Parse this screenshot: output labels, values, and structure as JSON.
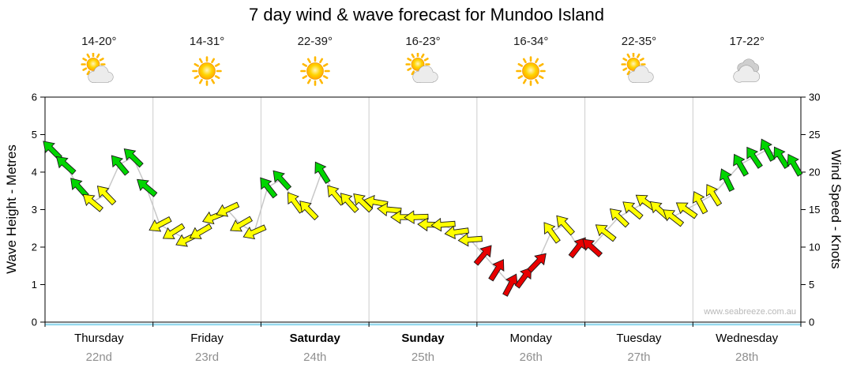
{
  "title": "7 day wind & wave forecast for Mundoo Island",
  "watermark": "www.seabreeze.com.au",
  "days": [
    {
      "name": "Thursday",
      "date": "22nd",
      "temps": "14-20°",
      "icon": "sun-cloud",
      "weekend": false
    },
    {
      "name": "Friday",
      "date": "23rd",
      "temps": "14-31°",
      "icon": "sun",
      "weekend": false
    },
    {
      "name": "Saturday",
      "date": "24th",
      "temps": "22-39°",
      "icon": "sun",
      "weekend": true
    },
    {
      "name": "Sunday",
      "date": "25th",
      "temps": "16-23°",
      "icon": "sun-cloud",
      "weekend": true
    },
    {
      "name": "Monday",
      "date": "26th",
      "temps": "16-34°",
      "icon": "sun",
      "weekend": false
    },
    {
      "name": "Tuesday",
      "date": "27th",
      "temps": "22-35°",
      "icon": "sun-cloud",
      "weekend": false
    },
    {
      "name": "Wednesday",
      "date": "28th",
      "temps": "17-22°",
      "icon": "cloud",
      "weekend": false
    }
  ],
  "chart_data": {
    "type": "line",
    "title": "7 day wind & wave forecast for Mundoo Island",
    "categories": [
      "Thursday 22nd",
      "Friday 23rd",
      "Saturday 24th",
      "Sunday 25th",
      "Monday 26th",
      "Tuesday 27th",
      "Wednesday 28th"
    ],
    "points_per_day": 8,
    "left_axis": {
      "label": "Wave Height - Metres",
      "min": 0,
      "max": 6,
      "ticks": [
        0,
        1,
        2,
        3,
        4,
        5,
        6
      ]
    },
    "right_axis": {
      "label": "Wind Speed - Knots",
      "min": 0,
      "max": 30,
      "ticks": [
        0,
        5,
        10,
        15,
        20,
        25,
        30
      ]
    },
    "series": [
      {
        "name": "Wind Speed",
        "unit": "knots",
        "axis": "right",
        "values": [
          23,
          21,
          18,
          16,
          17,
          21,
          22,
          18,
          13,
          12,
          11,
          12,
          14,
          15,
          13,
          12,
          18,
          19,
          16,
          15,
          20,
          17,
          16,
          16,
          16,
          15,
          14,
          14,
          13,
          13,
          12,
          11,
          9,
          7,
          5,
          6,
          8,
          12,
          13,
          10,
          10,
          12,
          14,
          15,
          16,
          15,
          14,
          15,
          16,
          17,
          19,
          21,
          22,
          23,
          22,
          21
        ],
        "directions_deg": [
          315,
          312,
          318,
          310,
          316,
          320,
          314,
          310,
          242,
          238,
          244,
          240,
          248,
          245,
          240,
          246,
          322,
          318,
          324,
          316,
          328,
          320,
          318,
          314,
          280,
          275,
          270,
          268,
          272,
          266,
          262,
          266,
          40,
          32,
          28,
          36,
          44,
          324,
          318,
          38,
          312,
          308,
          314,
          310,
          306,
          312,
          308,
          305,
          332,
          328,
          334,
          330,
          326,
          332,
          328,
          330
        ]
      },
      {
        "name": "Wave Height",
        "unit": "metres",
        "axis": "left",
        "values": [
          4.6,
          4.2,
          3.6,
          3.2,
          3.4,
          4.2,
          4.4,
          3.6,
          2.6,
          2.4,
          2.2,
          2.4,
          2.8,
          3.0,
          2.6,
          2.4,
          3.6,
          3.8,
          3.2,
          3.0,
          4.0,
          3.4,
          3.2,
          3.2,
          3.2,
          3.0,
          2.8,
          2.8,
          2.6,
          2.6,
          2.4,
          2.2,
          1.8,
          1.4,
          1.0,
          1.2,
          1.6,
          2.4,
          2.6,
          2.0,
          2.0,
          2.4,
          2.8,
          3.0,
          3.2,
          3.0,
          2.8,
          3.0,
          3.2,
          3.4,
          3.8,
          4.2,
          4.4,
          4.6,
          4.4,
          4.2
        ]
      }
    ],
    "wind_colors": {
      "light": "#e80000",
      "moderate": "#ffff00",
      "fresh": "#00d500",
      "light_below_knots": 10.5,
      "moderate_below_knots": 17.5
    },
    "grid": {
      "day_separators": true,
      "horizontal": false
    },
    "legend_position": "none"
  }
}
